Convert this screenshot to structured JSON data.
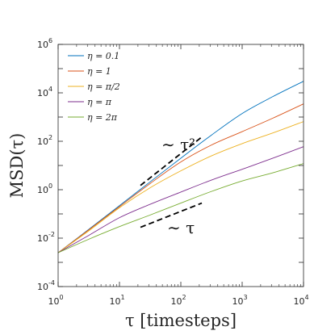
{
  "chart_data": {
    "type": "line",
    "xscale": "log",
    "yscale": "log",
    "xlim": [
      1,
      10000
    ],
    "ylim": [
      0.0001,
      1000000
    ],
    "xlabel": "τ [timesteps]",
    "ylabel": "MSD(τ)",
    "x_ticks": [
      {
        "value": 1,
        "base": "10",
        "exp": "0"
      },
      {
        "value": 10,
        "base": "10",
        "exp": "1"
      },
      {
        "value": 100,
        "base": "10",
        "exp": "2"
      },
      {
        "value": 1000,
        "base": "10",
        "exp": "3"
      },
      {
        "value": 10000,
        "base": "10",
        "exp": "4"
      }
    ],
    "y_ticks": [
      {
        "value": 0.0001,
        "base": "10",
        "exp": "-4"
      },
      {
        "value": 0.01,
        "base": "10",
        "exp": "-2"
      },
      {
        "value": 1,
        "base": "10",
        "exp": "0"
      },
      {
        "value": 100,
        "base": "10",
        "exp": "2"
      },
      {
        "value": 10000,
        "base": "10",
        "exp": "4"
      },
      {
        "value": 1000000,
        "base": "10",
        "exp": "6"
      }
    ],
    "legend_position": "top-left",
    "grid": false,
    "series": [
      {
        "name": "η = 0.1",
        "color": "#0072BD",
        "x": [
          1,
          3.16,
          10,
          31.6,
          100,
          316,
          1000,
          3162,
          10000
        ],
        "y": [
          0.0025,
          0.023,
          0.22,
          2.1,
          20,
          180,
          1400,
          7000,
          30000
        ]
      },
      {
        "name": "η = 1",
        "color": "#D95319",
        "x": [
          1,
          3.16,
          10,
          31.6,
          100,
          316,
          1000,
          3162,
          10000
        ],
        "y": [
          0.0025,
          0.022,
          0.2,
          1.8,
          14,
          70,
          250,
          900,
          3500
        ]
      },
      {
        "name": "η = π/2",
        "color": "#EDB120",
        "x": [
          1,
          3.16,
          10,
          31.6,
          100,
          316,
          1000,
          3162,
          10000
        ],
        "y": [
          0.0025,
          0.02,
          0.18,
          1.2,
          6,
          25,
          80,
          220,
          650
        ]
      },
      {
        "name": "η = π",
        "color": "#7E2F8E",
        "x": [
          1,
          3.16,
          10,
          31.6,
          100,
          316,
          1000,
          3162,
          10000
        ],
        "y": [
          0.0025,
          0.013,
          0.07,
          0.25,
          0.8,
          2.5,
          7,
          20,
          60
        ]
      },
      {
        "name": "η = 2π",
        "color": "#77AC30",
        "x": [
          1,
          3.16,
          10,
          31.6,
          100,
          316,
          1000,
          3162,
          10000
        ],
        "y": [
          0.0025,
          0.009,
          0.03,
          0.09,
          0.28,
          0.85,
          2.3,
          5,
          12
        ]
      }
    ],
    "annotations": [
      {
        "text": "∼ τ²",
        "x1": 22,
        "y1": 1.5,
        "x2": 220,
        "y2": 150
      },
      {
        "text": "∼ τ",
        "x1": 22,
        "y1": 0.028,
        "x2": 220,
        "y2": 0.28
      }
    ]
  }
}
